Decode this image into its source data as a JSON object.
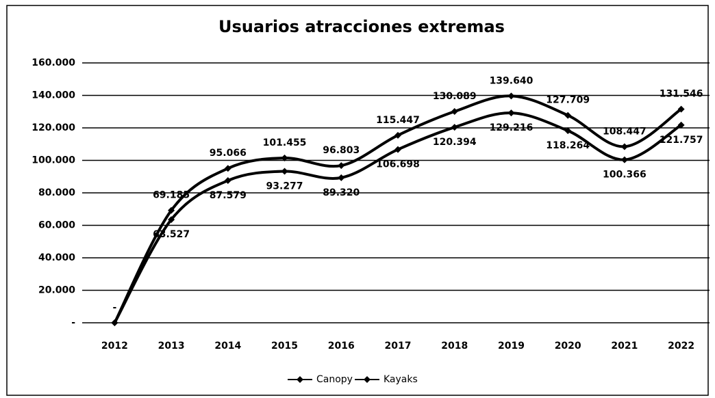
{
  "chart_data": {
    "type": "line",
    "title": "Usuarios atracciones extremas",
    "categories": [
      "2012",
      "2013",
      "2014",
      "2015",
      "2016",
      "2017",
      "2018",
      "2019",
      "2020",
      "2021",
      "2022"
    ],
    "series": [
      {
        "name": "Canopy",
        "color": "#000000",
        "values": [
          0,
          69185,
          95066,
          101455,
          96803,
          115447,
          130089,
          139640,
          127709,
          108447,
          131546
        ],
        "value_labels": [
          "-",
          "69.185",
          "95.066",
          "101.455",
          "96.803",
          "115.447",
          "130.089",
          "139.640",
          "127.709",
          "108.447",
          "131.546"
        ]
      },
      {
        "name": "Kayaks",
        "color": "#000000",
        "values": [
          0,
          63527,
          87579,
          93277,
          89320,
          106698,
          120394,
          129216,
          118264,
          100366,
          121757
        ],
        "value_labels": [
          null,
          "63.527",
          "87.579",
          "93.277",
          "89.320",
          "106.698",
          "120.394",
          "129.216",
          "118.264",
          "100.366",
          "121.757"
        ]
      }
    ],
    "ylim": [
      0,
      160000
    ],
    "yticks": [
      {
        "value": 0,
        "label": "-"
      },
      {
        "value": 20000,
        "label": "20.000"
      },
      {
        "value": 40000,
        "label": "40.000"
      },
      {
        "value": 60000,
        "label": "60.000"
      },
      {
        "value": 80000,
        "label": "80.000"
      },
      {
        "value": 100000,
        "label": "100.000"
      },
      {
        "value": 120000,
        "label": "120.000"
      },
      {
        "value": 140000,
        "label": "140.000"
      },
      {
        "value": 160000,
        "label": "160.000"
      }
    ],
    "grid": true,
    "smooth": true,
    "legend": "bottom"
  }
}
